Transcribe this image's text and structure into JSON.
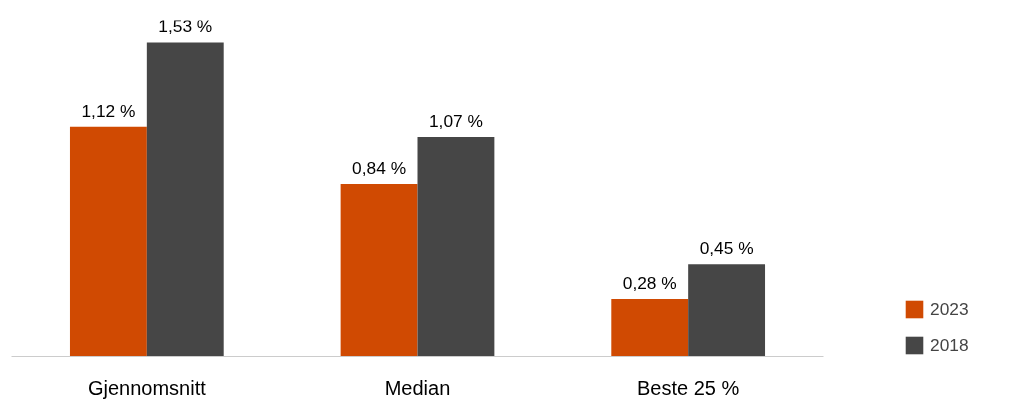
{
  "chart_data": {
    "type": "bar",
    "categories": [
      "Gjennomsnitt",
      "Median",
      "Beste 25 %"
    ],
    "series": [
      {
        "name": "2023",
        "color": "#d04a02",
        "values": [
          1.12,
          0.84,
          0.28
        ],
        "value_labels": [
          "1,12 %",
          "0,84 %",
          "0,28 %"
        ]
      },
      {
        "name": "2018",
        "color": "#464646",
        "values": [
          1.53,
          1.07,
          0.45
        ],
        "value_labels": [
          "1,53 %",
          "1,07 %",
          "0,45 %"
        ]
      }
    ],
    "tick_labels": "x",
    "grid": false,
    "legend": "bottom right"
  }
}
